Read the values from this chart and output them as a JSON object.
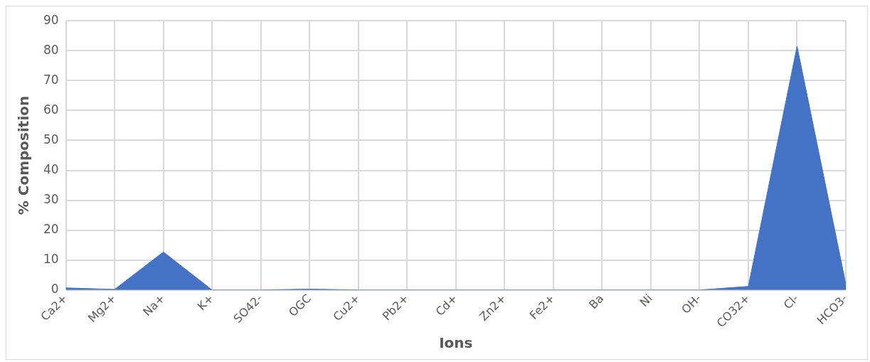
{
  "chart_data": {
    "type": "area",
    "xlabel": "Ions",
    "ylabel": "% Composition",
    "categories": [
      "Ca2+",
      "Mg2+",
      "Na+",
      "K+",
      "SO42-",
      "OGC",
      "Cu2+",
      "Pb2+",
      "Cd+",
      "Zn2+",
      "Fe2+",
      "Ba",
      "Ni",
      "OH-",
      "CO32+",
      "Cl-",
      "HCO3-"
    ],
    "values": [
      0.7,
      0.2,
      12.7,
      0,
      0,
      0.3,
      0,
      0,
      0,
      0,
      0,
      0,
      0,
      0,
      1.2,
      81.5,
      2
    ],
    "color": "#4472c4",
    "ylim": [
      0,
      90
    ],
    "yticks": [
      0,
      10,
      20,
      30,
      40,
      50,
      60,
      70,
      80,
      90
    ],
    "grid": true,
    "legend": false
  }
}
